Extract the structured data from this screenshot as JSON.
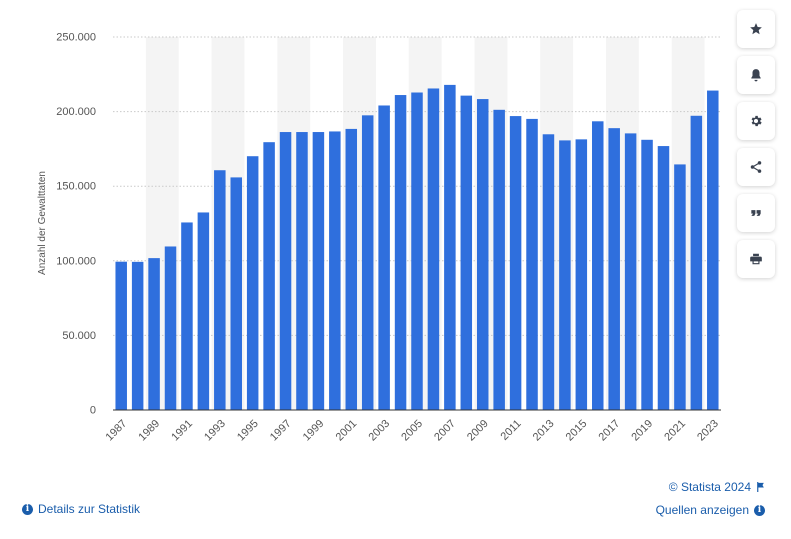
{
  "chart_data": {
    "type": "bar",
    "categories": [
      "1987",
      "1988",
      "1989",
      "1990",
      "1991",
      "1992",
      "1993",
      "1994",
      "1995",
      "1996",
      "1997",
      "1998",
      "1999",
      "2000",
      "2001",
      "2002",
      "2003",
      "2004",
      "2005",
      "2006",
      "2007",
      "2008",
      "2009",
      "2010",
      "2011",
      "2012",
      "2013",
      "2014",
      "2015",
      "2016",
      "2017",
      "2018",
      "2019",
      "2020",
      "2021",
      "2022",
      "2023"
    ],
    "x_tick_labels": [
      "1987",
      "1989",
      "1991",
      "1993",
      "1995",
      "1997",
      "1999",
      "2001",
      "2003",
      "2005",
      "2007",
      "2009",
      "2011",
      "2013",
      "2015",
      "2017",
      "2019",
      "2021",
      "2023"
    ],
    "values": [
      99400,
      99300,
      101800,
      109600,
      125700,
      132400,
      160700,
      155900,
      170100,
      179500,
      186300,
      186300,
      186300,
      186700,
      188400,
      197500,
      204100,
      211100,
      212800,
      215500,
      217900,
      210700,
      208400,
      201200,
      197000,
      195100,
      184800,
      180700,
      181400,
      193500,
      188900,
      185400,
      181100,
      176900,
      164600,
      197200,
      214100
    ],
    "title": "",
    "xlabel": "",
    "ylabel": "Anzahl der Gewalttaten",
    "ylim": [
      0,
      250000
    ],
    "y_ticks": [
      {
        "value": 0,
        "label": "0"
      },
      {
        "value": 50000,
        "label": "50.000"
      },
      {
        "value": 100000,
        "label": "100.000"
      },
      {
        "value": 150000,
        "label": "150.000"
      },
      {
        "value": 200000,
        "label": "200.000"
      },
      {
        "value": 250000,
        "label": "250.000"
      }
    ],
    "grid": true,
    "legend": "none",
    "bar_color": "#2f6fdd"
  },
  "toolbar": [
    {
      "name": "favorite-button",
      "icon": "star-icon"
    },
    {
      "name": "notification-button",
      "icon": "bell-icon"
    },
    {
      "name": "settings-button",
      "icon": "gear-icon"
    },
    {
      "name": "share-button",
      "icon": "share-icon"
    },
    {
      "name": "cite-button",
      "icon": "quote-icon"
    },
    {
      "name": "print-button",
      "icon": "print-icon"
    }
  ],
  "footer": {
    "details_label": "Details zur Statistik",
    "copyright_label": "© Statista 2024",
    "sources_label": "Quellen anzeigen"
  },
  "colors": {
    "accent": "#1a5dab",
    "bar": "#2f6fdd",
    "band": "#f4f4f4",
    "icon": "#3a4250"
  }
}
